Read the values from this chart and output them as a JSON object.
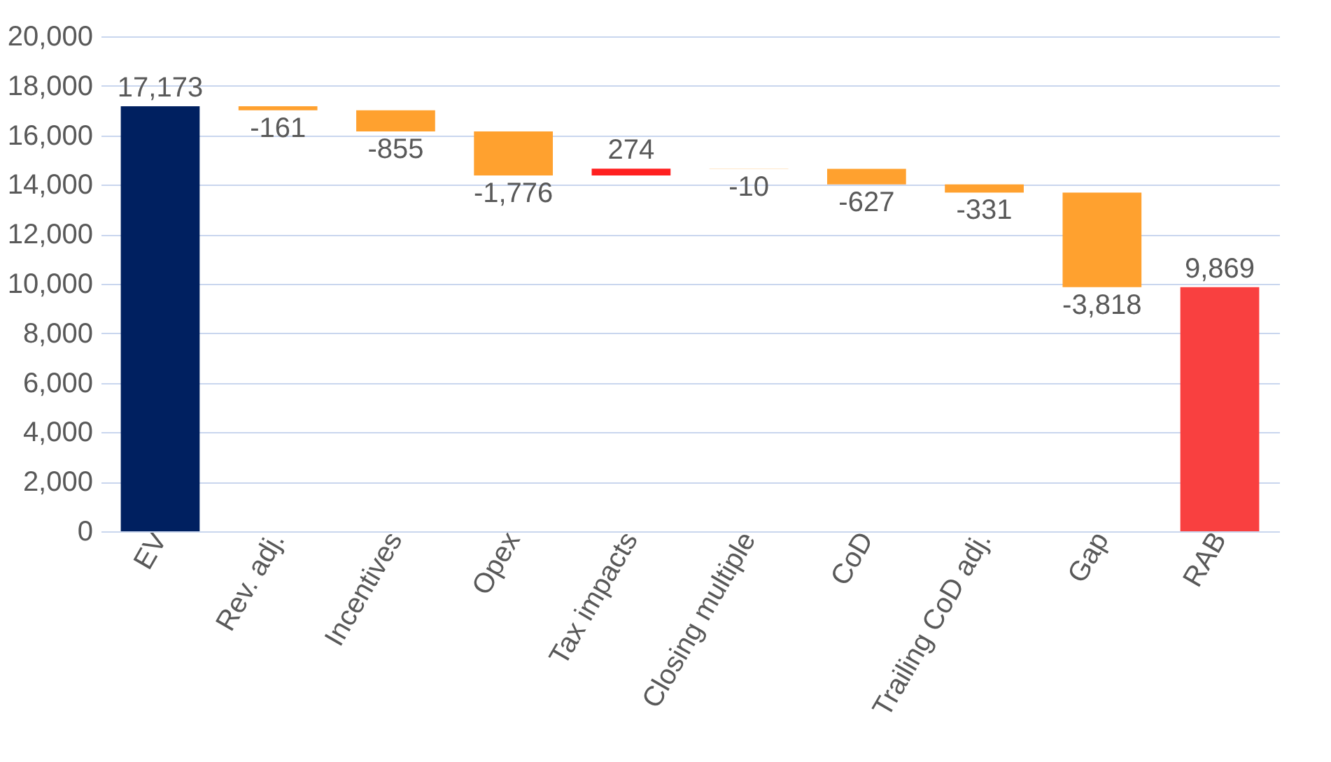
{
  "chart_data": {
    "type": "bar",
    "categories": [
      "EV",
      "Rev. adj.",
      "Incentives",
      "Opex",
      "Tax impacts",
      "Closing multiple",
      "CoD",
      "Trailing CoD adj.",
      "Gap",
      "RAB"
    ],
    "values": [
      17173,
      -161,
      -855,
      -1776,
      274,
      -10,
      -627,
      -331,
      -3818,
      9869
    ],
    "value_labels": [
      "17,173",
      "-161",
      "-855",
      "-1,776",
      "274",
      "-10",
      "-627",
      "-331",
      "-3,818",
      "9,869"
    ],
    "base": [
      0,
      17173,
      17012,
      16157,
      14381,
      14655,
      14645,
      14018,
      13687,
      0
    ],
    "colors": [
      "#002060",
      "#ffa12f",
      "#ffa12f",
      "#ffa12f",
      "#ff2020",
      "#ffa12f",
      "#ffa12f",
      "#ffa12f",
      "#ffa12f",
      "#f94040"
    ],
    "ylim": [
      0,
      20000
    ],
    "yticks": [
      {
        "value": 0,
        "label": "0"
      },
      {
        "value": 2000,
        "label": "2,000"
      },
      {
        "value": 4000,
        "label": "4,000"
      },
      {
        "value": 6000,
        "label": "6,000"
      },
      {
        "value": 8000,
        "label": "8,000"
      },
      {
        "value": 10000,
        "label": "10,000"
      },
      {
        "value": 12000,
        "label": "12,000"
      },
      {
        "value": 14000,
        "label": "14,000"
      },
      {
        "value": 16000,
        "label": "16,000"
      },
      {
        "value": 18000,
        "label": "18,000"
      },
      {
        "value": 20000,
        "label": "20,000"
      }
    ],
    "grid": "y"
  }
}
